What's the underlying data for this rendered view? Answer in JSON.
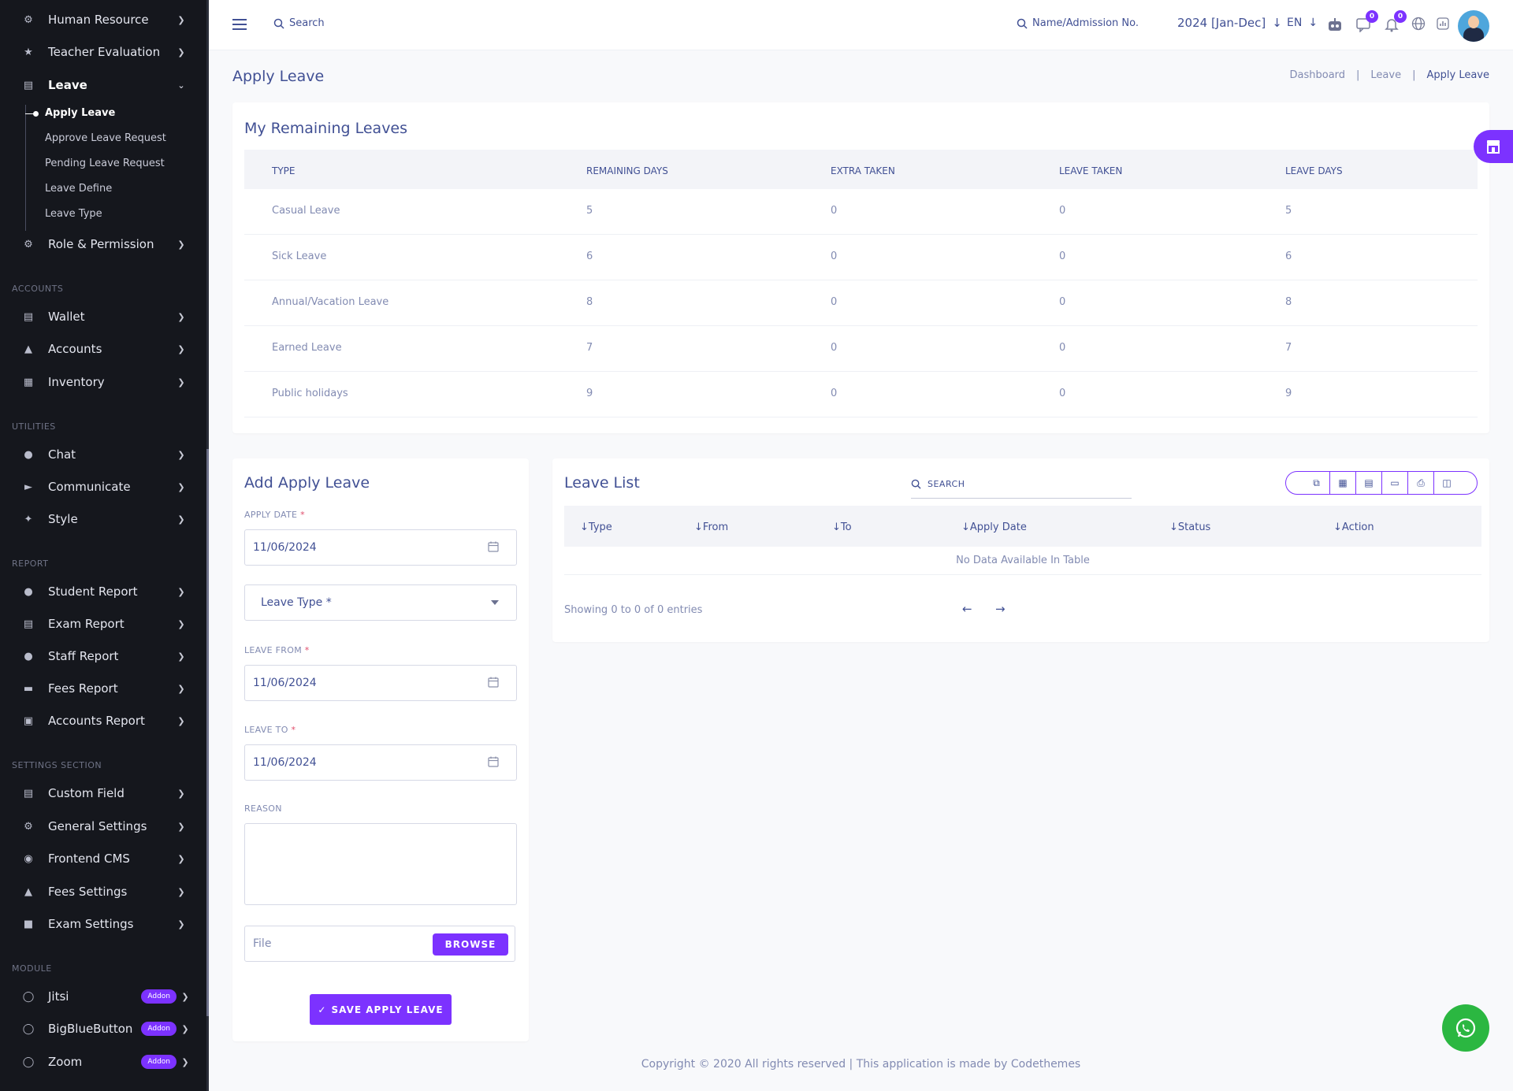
{
  "sidebar": {
    "items_top": [
      {
        "label": "Human Resource",
        "icon": "users-gear-icon"
      },
      {
        "label": "Teacher Evaluation",
        "icon": "star-icon"
      },
      {
        "label": "Leave",
        "icon": "bed-icon"
      }
    ],
    "leave_sub": [
      "Apply Leave",
      "Approve Leave Request",
      "Pending Leave Request",
      "Leave Define",
      "Leave Type"
    ],
    "role_permission": "Role & Permission",
    "sections": {
      "accounts": "ACCOUNTS",
      "utilities": "UTILITIES",
      "report": "REPORT",
      "settings": "SETTINGS SECTION",
      "module": "MODULE"
    },
    "accounts_items": [
      "Wallet",
      "Accounts",
      "Inventory"
    ],
    "utilities_items": [
      "Chat",
      "Communicate",
      "Style"
    ],
    "report_items": [
      "Student Report",
      "Exam Report",
      "Staff Report",
      "Fees Report",
      "Accounts Report"
    ],
    "settings_items": [
      "Custom Field",
      "General Settings",
      "Frontend CMS",
      "Fees Settings",
      "Exam Settings"
    ],
    "module_items": [
      "Jitsi",
      "BigBlueButton",
      "Zoom"
    ],
    "addon_label": "Addon"
  },
  "topbar": {
    "search_label": "Search",
    "student_search": "Name/Admission No.",
    "session": "2024 [Jan-Dec]",
    "language": "EN",
    "messages_count": "0",
    "notifications_count": "0"
  },
  "page": {
    "title": "Apply Leave",
    "breadcrumb": [
      "Dashboard",
      "Leave",
      "Apply Leave"
    ]
  },
  "remaining": {
    "title": "My Remaining Leaves",
    "headers": [
      "TYPE",
      "REMAINING DAYS",
      "EXTRA TAKEN",
      "LEAVE TAKEN",
      "LEAVE DAYS"
    ],
    "rows": [
      [
        "Casual Leave",
        "5",
        "0",
        "0",
        "5"
      ],
      [
        "Sick Leave",
        "6",
        "0",
        "0",
        "6"
      ],
      [
        "Annual/Vacation Leave",
        "8",
        "0",
        "0",
        "8"
      ],
      [
        "Earned Leave",
        "7",
        "0",
        "0",
        "7"
      ],
      [
        "Public holidays",
        "9",
        "0",
        "0",
        "9"
      ]
    ]
  },
  "form": {
    "title": "Add Apply Leave",
    "apply_date_label": "APPLY DATE",
    "apply_date": "11/06/2024",
    "leave_type_placeholder": "Leave Type *",
    "leave_from_label": "LEAVE FROM",
    "leave_from": "11/06/2024",
    "leave_to_label": "LEAVE TO",
    "leave_to": "11/06/2024",
    "reason_label": "REASON",
    "file_placeholder": "File",
    "browse": "BROWSE",
    "save": "SAVE APPLY LEAVE",
    "required_mark": "*"
  },
  "leave_list": {
    "title": "Leave List",
    "search_placeholder": "SEARCH",
    "headers": [
      "Type",
      "From",
      "To",
      "Apply Date",
      "Status",
      "Action"
    ],
    "empty": "No Data Available In Table",
    "showing": "Showing 0 to 0 of 0 entries"
  },
  "footer": "Copyright © 2020 All rights reserved | This application is made by Codethemes",
  "colors": {
    "accent": "#7c32ff",
    "text": "#415094",
    "muted": "#828bb2",
    "sidebar": "#15171d",
    "whatsapp": "#2bb741"
  }
}
